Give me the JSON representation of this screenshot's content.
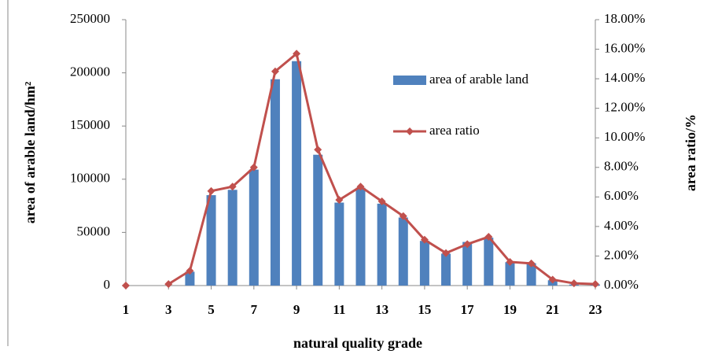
{
  "chart_data": {
    "type": "combo",
    "x_label": "natural quality grade",
    "y_label": "area of arable land/hm²",
    "y2_label": "area ratio/%",
    "x": [
      1,
      2,
      3,
      4,
      5,
      6,
      7,
      8,
      9,
      10,
      11,
      12,
      13,
      14,
      15,
      16,
      17,
      18,
      19,
      20,
      21,
      22,
      23
    ],
    "xlim": [
      1,
      23
    ],
    "xticks": [
      1,
      3,
      5,
      7,
      9,
      11,
      13,
      15,
      17,
      19,
      21,
      23
    ],
    "ylim": [
      0,
      250000
    ],
    "yticks": [
      0,
      50000,
      100000,
      150000,
      200000,
      250000
    ],
    "y2lim": [
      0,
      18
    ],
    "y2ticks": [
      {
        "value": 0,
        "label": "0.00%"
      },
      {
        "value": 2,
        "label": "2.00%"
      },
      {
        "value": 4,
        "label": "4.00%"
      },
      {
        "value": 6,
        "label": "6.00%"
      },
      {
        "value": 8,
        "label": "8.00%"
      },
      {
        "value": 10,
        "label": "10.00%"
      },
      {
        "value": 12,
        "label": "12.00%"
      },
      {
        "value": 14,
        "label": "14.00%"
      },
      {
        "value": 16,
        "label": "16.00%"
      },
      {
        "value": 18,
        "label": "18.00%"
      }
    ],
    "series": [
      {
        "name": "area of arable land",
        "type": "bar",
        "color": "#4f81bd",
        "values": [
          null,
          null,
          null,
          13000,
          85000,
          90000,
          109000,
          194000,
          211000,
          123000,
          78000,
          92000,
          77000,
          64000,
          42000,
          30000,
          41000,
          45000,
          22000,
          21000,
          5000,
          1000,
          1000
        ]
      },
      {
        "name": "area ratio",
        "type": "line",
        "axis": "y2",
        "color": "#c0504d",
        "values": [
          0,
          null,
          0.1,
          1.0,
          6.4,
          6.7,
          8.0,
          14.5,
          15.7,
          9.2,
          5.8,
          6.7,
          5.7,
          4.7,
          3.1,
          2.2,
          2.8,
          3.3,
          1.6,
          1.5,
          0.4,
          0.15,
          0.1
        ]
      }
    ]
  }
}
